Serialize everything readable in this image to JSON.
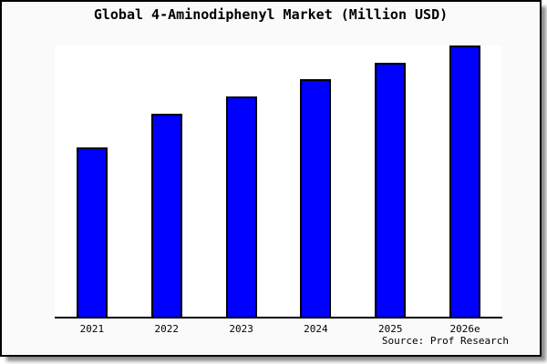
{
  "chart_data": {
    "type": "bar",
    "title": "Global 4-Aminodiphenyl Market (Million USD)",
    "categories": [
      "2021",
      "2022",
      "2023",
      "2024",
      "2025",
      "2026e"
    ],
    "values": [
      100,
      120,
      130,
      140,
      150,
      160
    ],
    "ylim": [
      0,
      160
    ],
    "xlabel": "",
    "ylabel": "",
    "y_axis_labels_shown": false,
    "grid": false,
    "legend": false,
    "values_note": "No y-axis scale is rendered in the image; values are relative estimates read from bar heights (tallest bar reaches the plot top = axis max).",
    "source": "Source: Prof Research"
  },
  "colors": {
    "figure_bg": "#fafafa",
    "plot_bg": "#ffffff",
    "frame_border": "#000000",
    "axis_line": "#000000",
    "text": "#000000",
    "bar_fill": "#0000ff",
    "bar_border": "#000000"
  }
}
